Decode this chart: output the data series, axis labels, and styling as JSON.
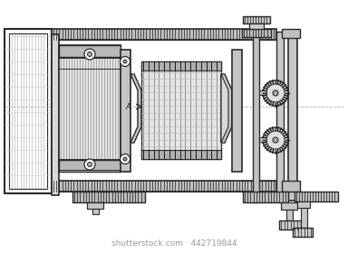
{
  "bg_color": "#ffffff",
  "ink": "#2a2a2a",
  "dark": "#1a1a1a",
  "mid": "#666666",
  "light": "#aaaaaa",
  "vlight": "#cccccc",
  "hatch_gray": "#888888",
  "watermark_color": "#999999",
  "watermark_text": "shutterstock.com · 442719844",
  "fig_width": 3.84,
  "fig_height": 2.8,
  "dpi": 100
}
